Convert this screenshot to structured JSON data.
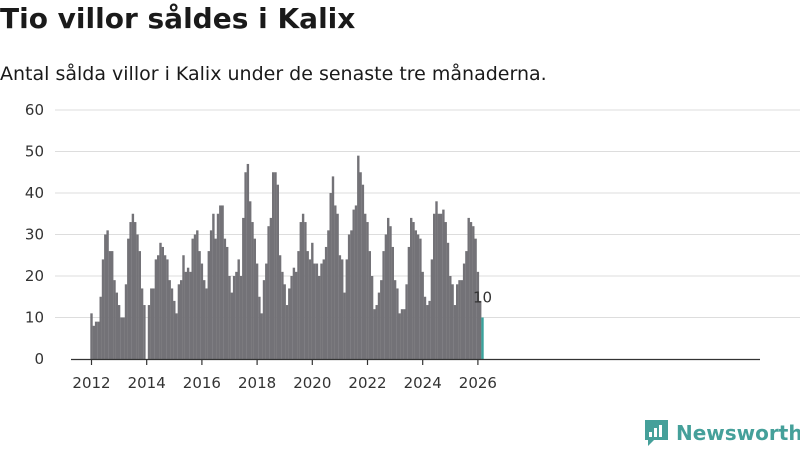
{
  "title": "Tio villor såldes i Kalix",
  "subtitle": "Antal sålda villor i Kalix under de senaste tre månaderna.",
  "brand": {
    "name": "Newsworthy",
    "icon": "newsworthy-logo-icon"
  },
  "colors": {
    "bar": "#737277",
    "highlight": "#3aa39c",
    "grid": "#dddddd",
    "axis": "#333333",
    "brand": "#45a09a"
  },
  "chart_data": {
    "type": "bar",
    "title": "Tio villor såldes i Kalix",
    "xlabel": "",
    "ylabel": "",
    "ylim": [
      0,
      60
    ],
    "yticks": [
      0,
      10,
      20,
      30,
      40,
      50,
      60
    ],
    "xticks": [
      2012,
      2014,
      2016,
      2018,
      2020,
      2022,
      2024,
      2026
    ],
    "x_start": "2012-01",
    "highlight_label": "10",
    "values": [
      11,
      8,
      9,
      9,
      15,
      24,
      30,
      31,
      26,
      26,
      19,
      16,
      13,
      10,
      10,
      18,
      29,
      33,
      35,
      33,
      30,
      26,
      17,
      13,
      0,
      13,
      17,
      17,
      24,
      25,
      28,
      27,
      25,
      24,
      19,
      17,
      14,
      11,
      18,
      19,
      25,
      21,
      22,
      21,
      29,
      30,
      31,
      26,
      23,
      19,
      17,
      26,
      31,
      35,
      29,
      35,
      37,
      37,
      29,
      27,
      20,
      16,
      20,
      21,
      24,
      20,
      34,
      45,
      47,
      38,
      33,
      29,
      23,
      15,
      11,
      19,
      23,
      32,
      34,
      45,
      45,
      42,
      25,
      21,
      18,
      13,
      17,
      20,
      22,
      21,
      26,
      33,
      35,
      33,
      26,
      24,
      28,
      23,
      23,
      20,
      23,
      24,
      27,
      31,
      40,
      44,
      37,
      35,
      25,
      24,
      16,
      24,
      30,
      31,
      36,
      37,
      49,
      45,
      42,
      35,
      33,
      26,
      20,
      12,
      13,
      16,
      19,
      26,
      30,
      34,
      32,
      27,
      19,
      17,
      11,
      12,
      12,
      18,
      27,
      34,
      33,
      31,
      30,
      29,
      21,
      15,
      13,
      14,
      24,
      35,
      38,
      35,
      35,
      36,
      33,
      28,
      20,
      18,
      13,
      18,
      19,
      19,
      23,
      26,
      34,
      33,
      32,
      29,
      21,
      14,
      10
    ]
  }
}
